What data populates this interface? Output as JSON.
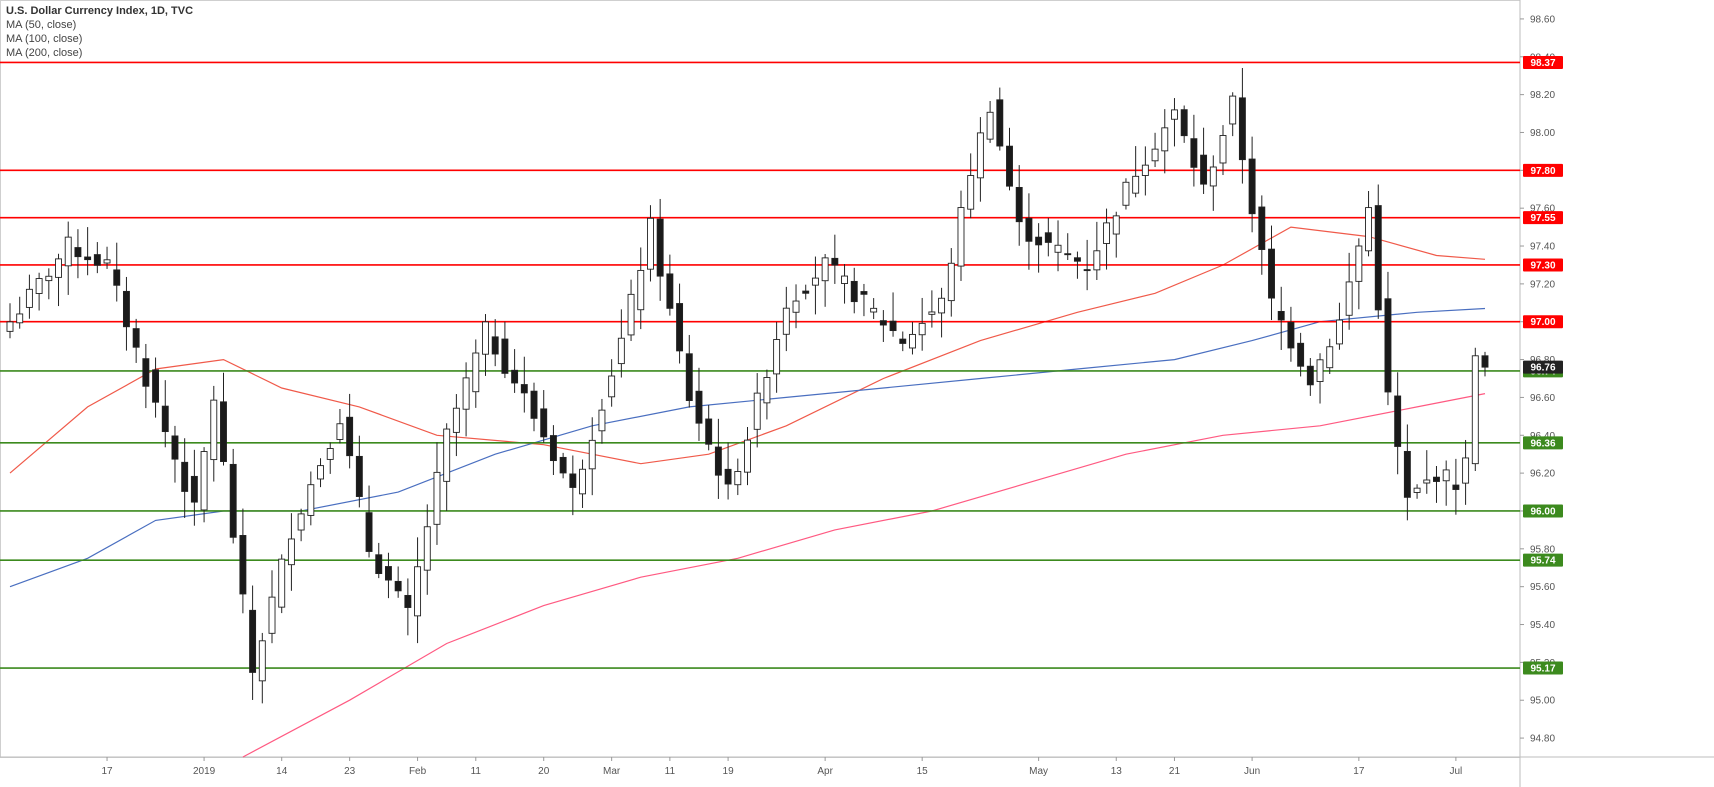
{
  "legend": {
    "title": "U.S. Dollar Currency Index, 1D, TVC",
    "ma50": "MA (50, close)",
    "ma100": "MA (100, close)",
    "ma200": "MA (200, close)"
  },
  "colors": {
    "resistance": "#ff0000",
    "support": "#3c8a1e",
    "ma50": "#f05a4a",
    "ma100": "#4a6fc0",
    "ma200": "#ff5a82",
    "current_tag": "#222222"
  },
  "chart_data": {
    "type": "candlestick",
    "title": "U.S. Dollar Currency Index, 1D, TVC",
    "ylim": [
      94.7,
      98.7
    ],
    "y_ticks": [
      "98.60",
      "98.40",
      "98.20",
      "98.00",
      "97.80",
      "97.60",
      "97.40",
      "97.20",
      "97.00",
      "96.80",
      "96.60",
      "96.40",
      "96.20",
      "96.00",
      "95.80",
      "95.60",
      "95.40",
      "95.20",
      "95.00",
      "94.80"
    ],
    "x_ticks": [
      {
        "label": "17",
        "index": 10
      },
      {
        "label": "2019",
        "index": 20
      },
      {
        "label": "14",
        "index": 28
      },
      {
        "label": "23",
        "index": 35
      },
      {
        "label": "Feb",
        "index": 42
      },
      {
        "label": "11",
        "index": 48
      },
      {
        "label": "20",
        "index": 55
      },
      {
        "label": "Mar",
        "index": 62
      },
      {
        "label": "11",
        "index": 68
      },
      {
        "label": "19",
        "index": 74
      },
      {
        "label": "Apr",
        "index": 84
      },
      {
        "label": "15",
        "index": 94
      },
      {
        "label": "May",
        "index": 106
      },
      {
        "label": "13",
        "index": 114
      },
      {
        "label": "21",
        "index": 120
      },
      {
        "label": "Jun",
        "index": 128
      },
      {
        "label": "17",
        "index": 139
      },
      {
        "label": "Jul",
        "index": 149
      }
    ],
    "horizontal_levels": [
      {
        "value": 98.37,
        "label": "98.37",
        "kind": "resistance"
      },
      {
        "value": 97.8,
        "label": "97.80",
        "kind": "resistance"
      },
      {
        "value": 97.55,
        "label": "97.55",
        "kind": "resistance"
      },
      {
        "value": 97.3,
        "label": "97.30",
        "kind": "resistance"
      },
      {
        "value": 97.0,
        "label": "97.00",
        "kind": "resistance"
      },
      {
        "value": 96.74,
        "label": "96.74",
        "kind": "support"
      },
      {
        "value": 96.36,
        "label": "96.36",
        "kind": "support"
      },
      {
        "value": 96.0,
        "label": "96.00",
        "kind": "support"
      },
      {
        "value": 95.74,
        "label": "95.74",
        "kind": "support"
      },
      {
        "value": 95.17,
        "label": "95.17",
        "kind": "support"
      }
    ],
    "current_price": {
      "value": 96.76,
      "label": "96.76"
    },
    "anchors": [
      {
        "i": 0,
        "c": 97.0
      },
      {
        "i": 6,
        "c": 97.4
      },
      {
        "i": 10,
        "c": 97.3
      },
      {
        "i": 14,
        "c": 96.7
      },
      {
        "i": 19,
        "c": 96.0
      },
      {
        "i": 21,
        "c": 96.6
      },
      {
        "i": 25,
        "c": 95.15
      },
      {
        "i": 29,
        "c": 95.9
      },
      {
        "i": 34,
        "c": 96.5
      },
      {
        "i": 37,
        "c": 95.8
      },
      {
        "i": 41,
        "c": 95.45
      },
      {
        "i": 45,
        "c": 96.4
      },
      {
        "i": 49,
        "c": 96.95
      },
      {
        "i": 53,
        "c": 96.6
      },
      {
        "i": 58,
        "c": 96.1
      },
      {
        "i": 63,
        "c": 96.9
      },
      {
        "i": 66,
        "c": 97.5
      },
      {
        "i": 70,
        "c": 96.6
      },
      {
        "i": 74,
        "c": 96.1
      },
      {
        "i": 76,
        "c": 96.4
      },
      {
        "i": 80,
        "c": 97.1
      },
      {
        "i": 84,
        "c": 97.3
      },
      {
        "i": 88,
        "c": 97.1
      },
      {
        "i": 92,
        "c": 96.9
      },
      {
        "i": 96,
        "c": 97.1
      },
      {
        "i": 99,
        "c": 97.8
      },
      {
        "i": 101,
        "c": 98.15
      },
      {
        "i": 104,
        "c": 97.5
      },
      {
        "i": 107,
        "c": 97.4
      },
      {
        "i": 111,
        "c": 97.3
      },
      {
        "i": 116,
        "c": 97.8
      },
      {
        "i": 120,
        "c": 98.1
      },
      {
        "i": 123,
        "c": 97.7
      },
      {
        "i": 126,
        "c": 98.15
      },
      {
        "i": 128,
        "c": 97.6
      },
      {
        "i": 130,
        "c": 97.1
      },
      {
        "i": 134,
        "c": 96.7
      },
      {
        "i": 137,
        "c": 97.0
      },
      {
        "i": 140,
        "c": 97.6
      },
      {
        "i": 142,
        "c": 96.6
      },
      {
        "i": 144,
        "c": 96.05
      },
      {
        "i": 147,
        "c": 96.2
      },
      {
        "i": 149,
        "c": 96.15
      },
      {
        "i": 150,
        "c": 96.25
      },
      {
        "i": 151,
        "c": 96.82
      },
      {
        "i": 152,
        "c": 96.76
      }
    ],
    "ma_series": {
      "ma50": [
        {
          "i": 0,
          "v": 96.2
        },
        {
          "i": 8,
          "v": 96.55
        },
        {
          "i": 15,
          "v": 96.75
        },
        {
          "i": 22,
          "v": 96.8
        },
        {
          "i": 28,
          "v": 96.65
        },
        {
          "i": 36,
          "v": 96.55
        },
        {
          "i": 44,
          "v": 96.4
        },
        {
          "i": 55,
          "v": 96.35
        },
        {
          "i": 65,
          "v": 96.25
        },
        {
          "i": 72,
          "v": 96.3
        },
        {
          "i": 80,
          "v": 96.45
        },
        {
          "i": 90,
          "v": 96.7
        },
        {
          "i": 100,
          "v": 96.9
        },
        {
          "i": 110,
          "v": 97.05
        },
        {
          "i": 118,
          "v": 97.15
        },
        {
          "i": 125,
          "v": 97.3
        },
        {
          "i": 132,
          "v": 97.5
        },
        {
          "i": 140,
          "v": 97.45
        },
        {
          "i": 147,
          "v": 97.35
        },
        {
          "i": 152,
          "v": 97.33
        }
      ],
      "ma100": [
        {
          "i": 0,
          "v": 95.6
        },
        {
          "i": 8,
          "v": 95.75
        },
        {
          "i": 15,
          "v": 95.95
        },
        {
          "i": 22,
          "v": 96.0
        },
        {
          "i": 30,
          "v": 96.0
        },
        {
          "i": 40,
          "v": 96.1
        },
        {
          "i": 50,
          "v": 96.3
        },
        {
          "i": 60,
          "v": 96.45
        },
        {
          "i": 70,
          "v": 96.55
        },
        {
          "i": 80,
          "v": 96.6
        },
        {
          "i": 90,
          "v": 96.65
        },
        {
          "i": 100,
          "v": 96.7
        },
        {
          "i": 110,
          "v": 96.75
        },
        {
          "i": 120,
          "v": 96.8
        },
        {
          "i": 128,
          "v": 96.9
        },
        {
          "i": 135,
          "v": 97.0
        },
        {
          "i": 145,
          "v": 97.05
        },
        {
          "i": 152,
          "v": 97.07
        }
      ],
      "ma200": [
        {
          "i": 24,
          "v": 94.7
        },
        {
          "i": 35,
          "v": 95.0
        },
        {
          "i": 45,
          "v": 95.3
        },
        {
          "i": 55,
          "v": 95.5
        },
        {
          "i": 65,
          "v": 95.65
        },
        {
          "i": 75,
          "v": 95.75
        },
        {
          "i": 85,
          "v": 95.9
        },
        {
          "i": 95,
          "v": 96.0
        },
        {
          "i": 105,
          "v": 96.15
        },
        {
          "i": 115,
          "v": 96.3
        },
        {
          "i": 125,
          "v": 96.4
        },
        {
          "i": 135,
          "v": 96.45
        },
        {
          "i": 145,
          "v": 96.55
        },
        {
          "i": 152,
          "v": 96.62
        }
      ]
    }
  }
}
